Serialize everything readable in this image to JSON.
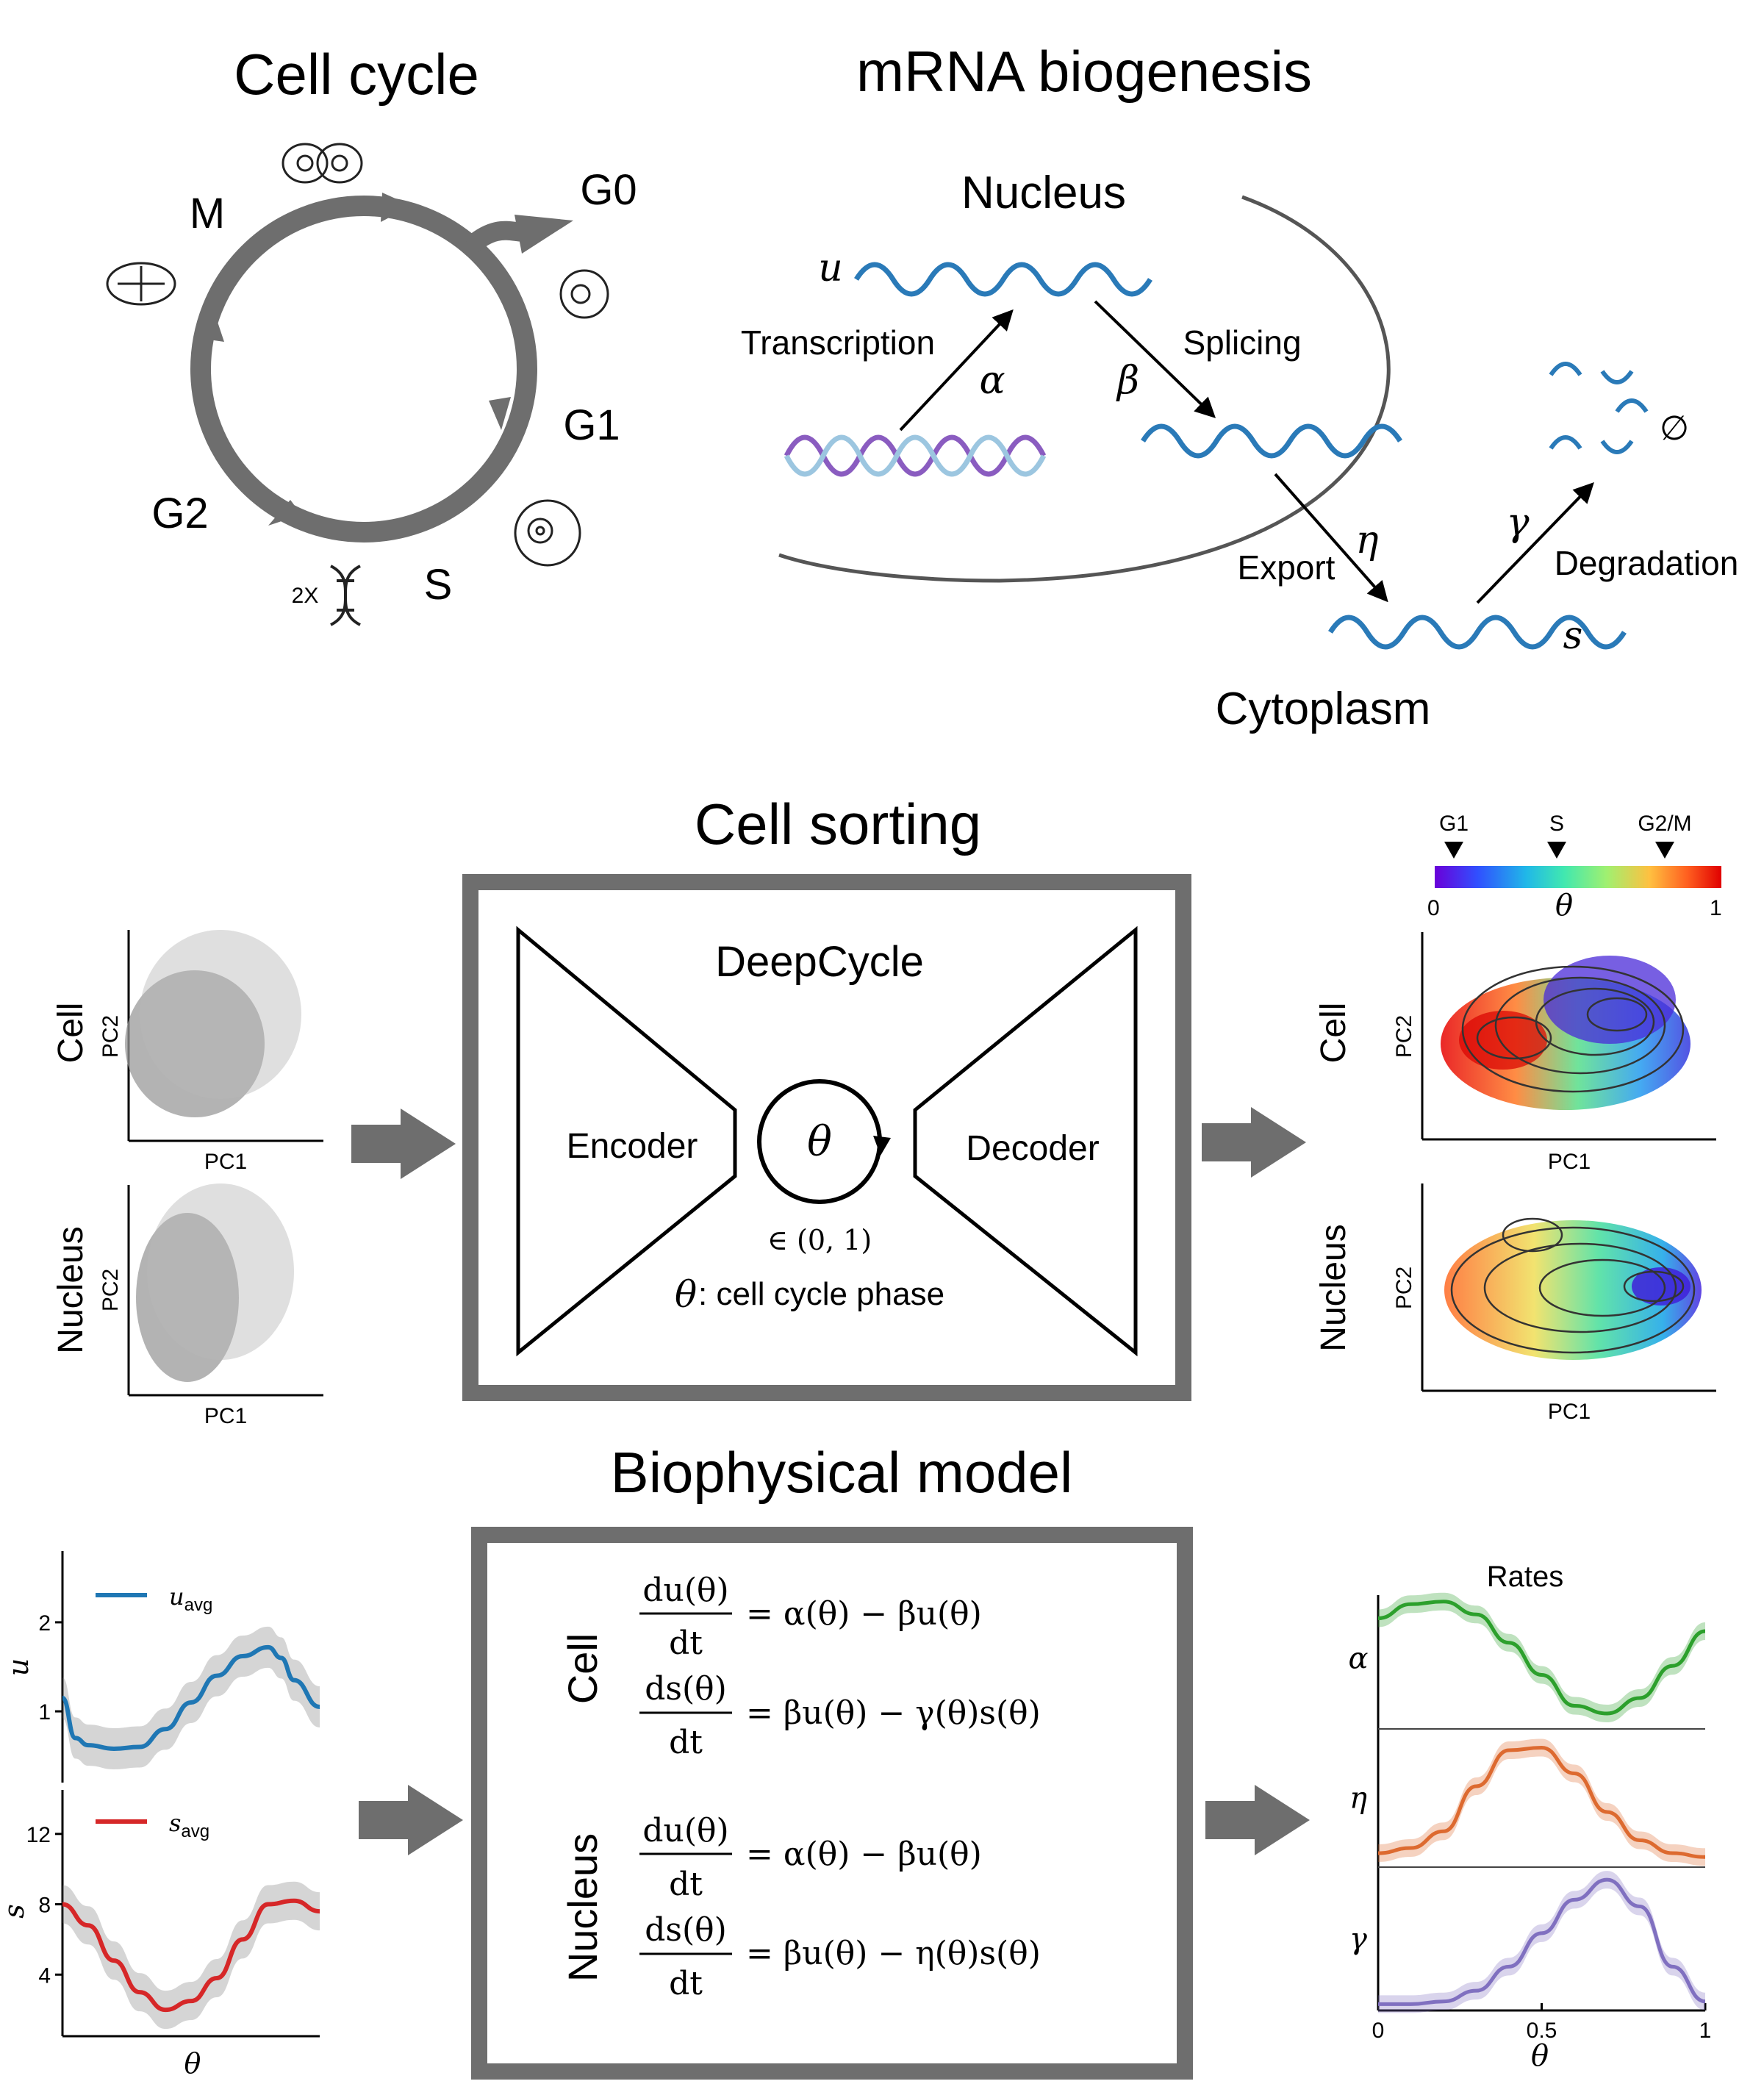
{
  "cell_cycle": {
    "title": "Cell cycle",
    "phases": {
      "m": "M",
      "g0": "G0",
      "g1": "G1",
      "s": "S",
      "g2": "G2"
    },
    "dna_count": "2X"
  },
  "mrna": {
    "title": "mRNA biogenesis",
    "nucleus": "Nucleus",
    "cytoplasm": "Cytoplasm",
    "u": "u",
    "s": "s",
    "transcription": "Transcription",
    "splicing": "Splicing",
    "export": "Export",
    "degradation": "Degradation",
    "alpha": "α",
    "beta": "β",
    "eta": "η",
    "gamma": "γ",
    "empty": "∅"
  },
  "sorting": {
    "title": "Cell sorting",
    "model_name": "DeepCycle",
    "encoder": "Encoder",
    "decoder": "Decoder",
    "theta": "θ",
    "range": "∈ (0, 1)",
    "phase_text": ": cell cycle phase",
    "input_panels": [
      {
        "row_label": "Cell",
        "xlabel": "PC1",
        "ylabel": "PC2"
      },
      {
        "row_label": "Nucleus",
        "xlabel": "PC1",
        "ylabel": "PC2"
      }
    ],
    "output_panels": [
      {
        "row_label": "Cell",
        "xlabel": "PC1",
        "ylabel": "PC2"
      },
      {
        "row_label": "Nucleus",
        "xlabel": "PC1",
        "ylabel": "PC2"
      }
    ],
    "colorbar": {
      "markers": [
        "G1",
        "S",
        "G2/M"
      ],
      "min": "0",
      "max": "1",
      "label": "θ",
      "colors": [
        "#6a00d9",
        "#3050ff",
        "#20b8e8",
        "#40e8b0",
        "#a0f070",
        "#ffc040",
        "#ff6020",
        "#e00000"
      ]
    }
  },
  "biophys": {
    "title": "Biophysical model",
    "cell": "Cell",
    "nucleus": "Nucleus",
    "eq_cell_u_lhs_num": "du(θ)",
    "eq_cell_u_rhs": "= α(θ) − βu(θ)",
    "eq_cell_s_lhs_num": "ds(θ)",
    "eq_cell_s_rhs": "= βu(θ) − γ(θ)s(θ)",
    "eq_nuc_u_lhs_num": "du(θ)",
    "eq_nuc_u_rhs": "= α(θ) − βu(θ)",
    "eq_nuc_s_lhs_num": "ds(θ)",
    "eq_nuc_s_rhs": "= βu(θ) − η(θ)s(θ)",
    "dt": "dt"
  },
  "chart_data": [
    {
      "type": "line",
      "panel": "u",
      "ylabel": "u",
      "yticks": [
        "1",
        "2"
      ],
      "legend": "u",
      "legend_sub": "avg",
      "color": "#1f77b4",
      "x": [
        0,
        0.05,
        0.1,
        0.2,
        0.3,
        0.4,
        0.5,
        0.6,
        0.7,
        0.8,
        0.85,
        0.9,
        1
      ],
      "values": [
        1.15,
        0.7,
        0.62,
        0.58,
        0.6,
        0.8,
        1.1,
        1.4,
        1.62,
        1.72,
        1.6,
        1.35,
        1.05
      ],
      "ylim": [
        0.2,
        2.8
      ]
    },
    {
      "type": "line",
      "panel": "s",
      "ylabel": "s",
      "yticks": [
        "4",
        "8",
        "12"
      ],
      "legend": "s",
      "legend_sub": "avg",
      "color": "#d62728",
      "x": [
        0,
        0.1,
        0.2,
        0.3,
        0.4,
        0.5,
        0.6,
        0.7,
        0.8,
        0.9,
        1
      ],
      "values": [
        8.0,
        6.8,
        4.8,
        3.0,
        2.0,
        2.5,
        3.8,
        6.0,
        8.0,
        8.2,
        7.6
      ],
      "ylim": [
        0.5,
        14.5
      ]
    },
    {
      "type": "line",
      "title": "Rates",
      "xlabel": "θ",
      "xticks": [
        "0",
        "0.5",
        "1"
      ],
      "series": [
        {
          "name": "α",
          "color": "#2ca02c",
          "x": [
            0,
            0.1,
            0.2,
            0.3,
            0.4,
            0.5,
            0.6,
            0.7,
            0.8,
            0.9,
            1
          ],
          "values": [
            0.82,
            0.93,
            0.95,
            0.85,
            0.63,
            0.38,
            0.14,
            0.08,
            0.2,
            0.45,
            0.72
          ]
        },
        {
          "name": "η",
          "color": "#dd6a30",
          "x": [
            0,
            0.1,
            0.2,
            0.3,
            0.4,
            0.5,
            0.6,
            0.7,
            0.8,
            0.9,
            1
          ],
          "values": [
            0.08,
            0.12,
            0.25,
            0.6,
            0.88,
            0.9,
            0.7,
            0.4,
            0.18,
            0.08,
            0.05
          ]
        },
        {
          "name": "γ",
          "color": "#8070c0",
          "x": [
            0,
            0.1,
            0.2,
            0.3,
            0.4,
            0.5,
            0.6,
            0.7,
            0.8,
            0.9,
            1
          ],
          "values": [
            0.02,
            0.02,
            0.04,
            0.12,
            0.3,
            0.55,
            0.8,
            0.95,
            0.75,
            0.3,
            0.04
          ]
        }
      ]
    }
  ]
}
